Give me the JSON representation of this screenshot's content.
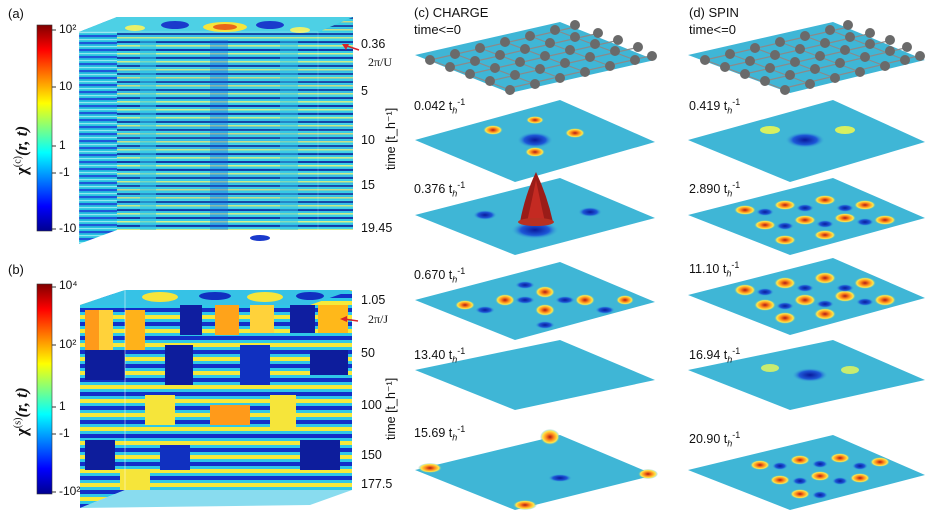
{
  "panels": {
    "a": {
      "label": "(a)",
      "ylabel": "χ(c)(r, t)",
      "ylabel_sup": "(c)",
      "cbar_ticks": [
        "10²",
        "10",
        "1",
        "-1",
        "-10"
      ],
      "time_ticks": [
        "0.36",
        "5",
        "10",
        "15",
        "19.45"
      ],
      "marker": "2π/U",
      "time_axis": "time [t_h⁻¹]"
    },
    "b": {
      "label": "(b)",
      "ylabel": "χ(s)(r, t)",
      "ylabel_sup": "(s)",
      "cbar_ticks": [
        "10⁴",
        "10²",
        "1",
        "-1",
        "-10²"
      ],
      "time_ticks": [
        "1.05",
        "50",
        "100",
        "150",
        "177.5"
      ],
      "marker": "2π/J",
      "time_axis": "time [t_h⁻¹]"
    },
    "c": {
      "label": "(c)",
      "title": "CHARGE",
      "initial": "time<=0",
      "snapshots": [
        "0.042 t",
        "0.376 t",
        "0.670 t",
        "13.40 t",
        "15.69 t"
      ]
    },
    "d": {
      "label": "(d)",
      "title": "SPIN",
      "initial": "time<=0",
      "snapshots": [
        "0.419 t",
        "2.890 t",
        "11.10 t",
        "16.94 t",
        "20.90 t"
      ]
    }
  },
  "colors": {
    "colormap": [
      "#00008f",
      "#0000ff",
      "#00ffff",
      "#ffff00",
      "#ff0000",
      "#800000"
    ],
    "surface": "#3fb6d6"
  }
}
